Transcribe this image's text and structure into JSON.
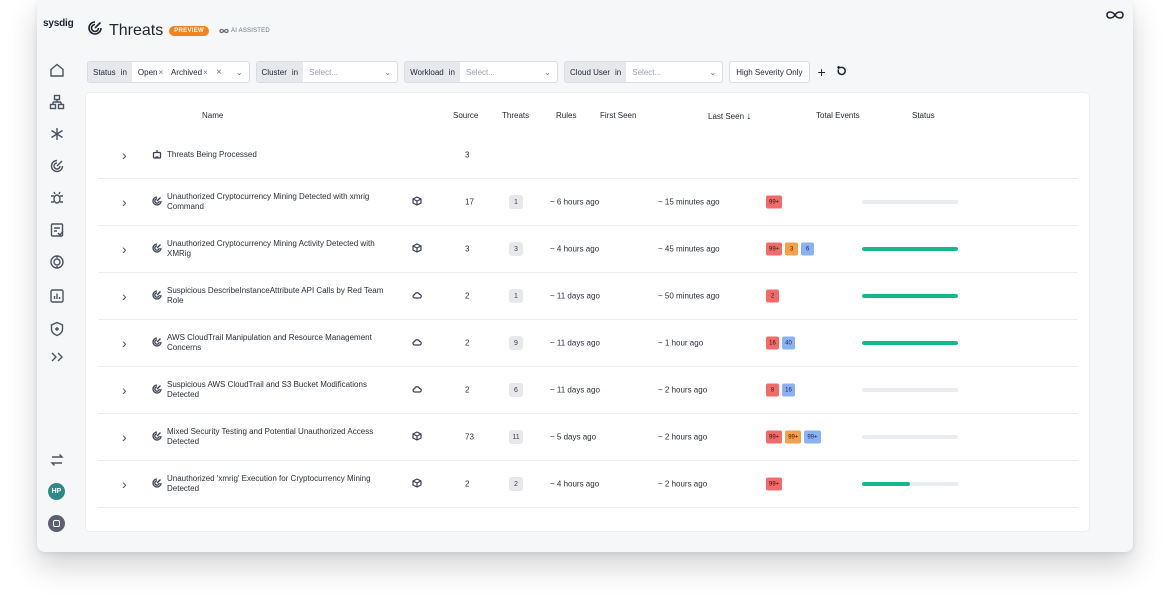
{
  "app": {
    "brand": "sysdig"
  },
  "header": {
    "title": "Threats",
    "preview_badge": "PREVIEW",
    "ai_label": "AI ASSISTED"
  },
  "filters": {
    "status": {
      "key": "Status",
      "op": "in",
      "chips": [
        "Open",
        "Archived"
      ]
    },
    "cluster": {
      "key": "Cluster",
      "op": "in",
      "placeholder": "Select..."
    },
    "workload": {
      "key": "Workload",
      "op": "in",
      "placeholder": "Select..."
    },
    "cloud_user": {
      "key": "Cloud User",
      "op": "in",
      "placeholder": "Select..."
    },
    "high_severity": "High Severity Only",
    "add": "+"
  },
  "user": {
    "initials": "HP"
  },
  "table": {
    "columns": {
      "name": "Name",
      "source": "Source",
      "threats": "Threats",
      "rules": "Rules",
      "first_seen": "First Seen",
      "last_seen": "Last Seen",
      "last_seen_sort": "↓",
      "total_events": "Total Events",
      "status": "Status"
    },
    "rows": [
      {
        "name": "Threats Being Processed",
        "threats": "3",
        "processing": true
      },
      {
        "name": "Unauthorized Cryptocurrency Mining Detected with xmrig Command",
        "source": "container",
        "threats": "17",
        "rules": "1",
        "first_seen": "~ 6 hours ago",
        "last_seen": "~ 15 minutes ago",
        "events": [
          {
            "label": "99+",
            "color": "red"
          }
        ],
        "progress": 0
      },
      {
        "name": "Unauthorized Cryptocurrency Mining Activity Detected with XMRig",
        "source": "container",
        "threats": "3",
        "rules": "3",
        "first_seen": "~ 4 hours ago",
        "last_seen": "~ 45 minutes ago",
        "events": [
          {
            "label": "99+",
            "color": "red"
          },
          {
            "label": "3",
            "color": "orange"
          },
          {
            "label": "6",
            "color": "blue"
          }
        ],
        "progress": 1
      },
      {
        "name": "Suspicious DescribeInstanceAttribute API Calls by Red Team Role",
        "source": "cloud",
        "threats": "2",
        "rules": "1",
        "first_seen": "~ 11 days ago",
        "last_seen": "~ 50 minutes ago",
        "events": [
          {
            "label": "2",
            "color": "red"
          }
        ],
        "progress": 1
      },
      {
        "name": "AWS CloudTrail Manipulation and Resource Management Concerns",
        "source": "cloud",
        "threats": "2",
        "rules": "9",
        "first_seen": "~ 11 days ago",
        "last_seen": "~ 1 hour ago",
        "events": [
          {
            "label": "16",
            "color": "red"
          },
          {
            "label": "40",
            "color": "blue"
          }
        ],
        "progress": 1
      },
      {
        "name": "Suspicious AWS CloudTrail and S3 Bucket Modifications Detected",
        "source": "cloud",
        "threats": "2",
        "rules": "6",
        "first_seen": "~ 11 days ago",
        "last_seen": "~ 2 hours ago",
        "events": [
          {
            "label": "8",
            "color": "red"
          },
          {
            "label": "16",
            "color": "blue"
          }
        ],
        "progress": 0
      },
      {
        "name": "Mixed Security Testing and Potential Unauthorized Access Detected",
        "source": "container",
        "threats": "73",
        "rules": "11",
        "first_seen": "~ 5 days ago",
        "last_seen": "~ 2 hours ago",
        "events": [
          {
            "label": "99+",
            "color": "red"
          },
          {
            "label": "99+",
            "color": "orange"
          },
          {
            "label": "99+",
            "color": "blue"
          }
        ],
        "progress": 0
      },
      {
        "name": "Unauthorized 'xmrig' Execution for Cryptocurrency Mining Detected",
        "source": "container",
        "threats": "2",
        "rules": "2",
        "first_seen": "~ 4 hours ago",
        "last_seen": "~ 2 hours ago",
        "events": [
          {
            "label": "99+",
            "color": "red"
          }
        ],
        "progress": 0.5
      }
    ]
  }
}
